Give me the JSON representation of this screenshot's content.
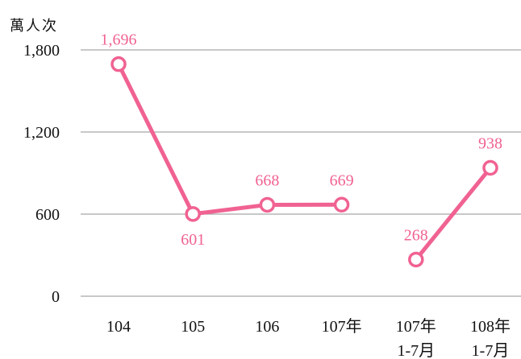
{
  "chart_data": {
    "type": "line",
    "ylabel": "萬人次",
    "ylim": [
      0,
      1800
    ],
    "yticks": [
      "1,800",
      "1,200",
      "600",
      "0"
    ],
    "ytick_values": [
      1800,
      1200,
      600,
      0
    ],
    "categories": [
      {
        "line1": "104",
        "line2": ""
      },
      {
        "line1": "105",
        "line2": ""
      },
      {
        "line1": "106",
        "line2": ""
      },
      {
        "line1": "107年",
        "line2": ""
      },
      {
        "line1": "107年",
        "line2": "1-7月"
      },
      {
        "line1": "108年",
        "line2": "1-7月"
      }
    ],
    "segments": [
      {
        "indices": [
          0,
          1,
          2,
          3
        ]
      },
      {
        "indices": [
          4,
          5
        ]
      }
    ],
    "values": [
      1696,
      601,
      668,
      669,
      268,
      938
    ],
    "value_labels": [
      "1,696",
      "601",
      "668",
      "669",
      "268",
      "938"
    ],
    "label_positions": [
      "above",
      "below",
      "above",
      "above",
      "above",
      "above"
    ],
    "grid": true,
    "line_color": "#f06292",
    "label_color": "#f06292",
    "grid_color": "#a6a6a6"
  }
}
